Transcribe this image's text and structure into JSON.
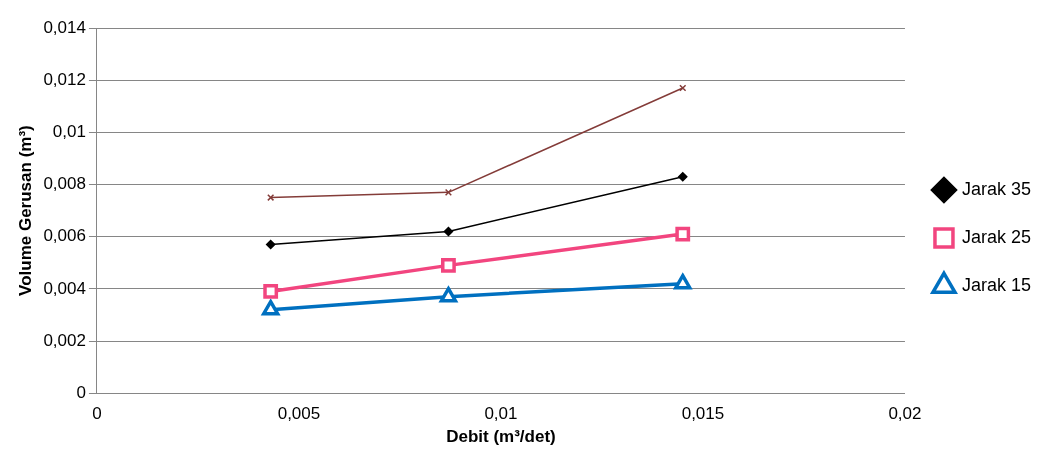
{
  "chart_data": {
    "type": "scatter",
    "xlabel": "Debit (m³/det)",
    "ylabel": "Volume Gerusan (m³)",
    "x": [
      0.0043,
      0.0087,
      0.0145
    ],
    "series": [
      {
        "type": "line",
        "color": "#843c39",
        "marker": "cross",
        "values": [
          0.0075,
          0.0077,
          0.0117
        ]
      },
      {
        "type": "line",
        "name": "Jarak 35",
        "color": "#000000",
        "marker": "diamond",
        "values": [
          0.0057,
          0.0062,
          0.0083
        ]
      },
      {
        "type": "line",
        "name": "Jarak 25",
        "color": "#f2457f",
        "marker": "square",
        "values": [
          0.0039,
          0.0049,
          0.0061
        ]
      },
      {
        "type": "line",
        "name": "Jarak 15",
        "color": "#0070c0",
        "marker": "triangle",
        "values": [
          0.0032,
          0.0037,
          0.0042
        ]
      }
    ],
    "xlim": [
      0,
      0.02
    ],
    "xticks": [
      {
        "value": 0,
        "label": "0"
      },
      {
        "value": 0.005,
        "label": "0,005"
      },
      {
        "value": 0.01,
        "label": "0,01"
      },
      {
        "value": 0.015,
        "label": "0,015"
      },
      {
        "value": 0.02,
        "label": "0,02"
      }
    ],
    "ylim": [
      0,
      0.014
    ],
    "yticks": [
      {
        "value": 0,
        "label": "0"
      },
      {
        "value": 0.002,
        "label": "0,002"
      },
      {
        "value": 0.004,
        "label": "0,004"
      },
      {
        "value": 0.006,
        "label": "0,006"
      },
      {
        "value": 0.008,
        "label": "0,008"
      },
      {
        "value": 0.01,
        "label": "0,01"
      },
      {
        "value": 0.012,
        "label": "0,012"
      },
      {
        "value": 0.014,
        "label": "0,014"
      }
    ],
    "grid": "y",
    "legend": "right"
  }
}
